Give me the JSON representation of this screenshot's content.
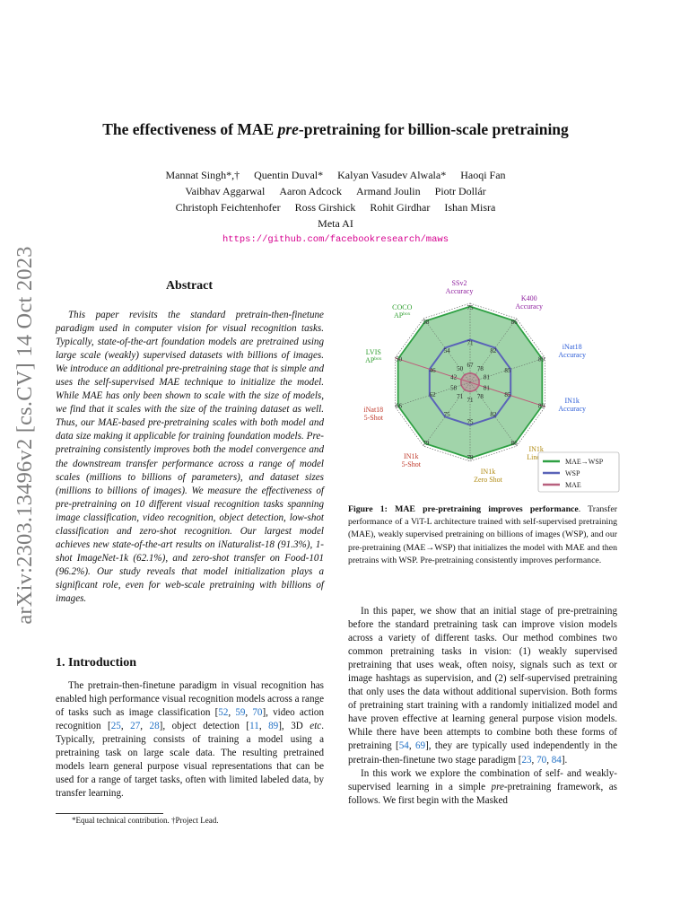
{
  "stamp": "arXiv:2303.13496v2  [cs.CV]  14 Oct 2023",
  "title": {
    "pre": "The effectiveness of MAE ",
    "em": "pre",
    "post": "-pretraining for billion-scale pretraining"
  },
  "authors": {
    "line1": [
      "Mannat Singh*,†",
      "Quentin Duval*",
      "Kalyan Vasudev Alwala*",
      "Haoqi Fan"
    ],
    "line2": [
      "Vaibhav Aggarwal",
      "Aaron Adcock",
      "Armand Joulin",
      "Piotr Dollár"
    ],
    "line3": [
      "Christoph Feichtenhofer",
      "Ross Girshick",
      "Rohit Girdhar",
      "Ishan Misra"
    ],
    "affiliation": "Meta AI",
    "url": "https://github.com/facebookresearch/maws"
  },
  "abstract": {
    "heading": "Abstract",
    "text": "This paper revisits the standard pretrain-then-finetune paradigm used in computer vision for visual recognition tasks. Typically, state-of-the-art foundation models are pretrained using large scale (weakly) supervised datasets with billions of images. We introduce an additional pre-pretraining stage that is simple and uses the self-supervised MAE technique to initialize the model. While MAE has only been shown to scale with the size of models, we find that it scales with the size of the training dataset as well. Thus, our MAE-based pre-pretraining scales with both model and data size making it applicable for training foundation models. Pre-pretraining consistently improves both the model convergence and the downstream transfer performance across a range of model scales (millions to billions of parameters), and dataset sizes (millions to billions of images). We measure the effectiveness of pre-pretraining on 10 different visual recognition tasks spanning image classification, video recognition, object detection, low-shot classification and zero-shot recognition. Our largest model achieves new state-of-the-art results on iNaturalist-18 (91.3%), 1-shot ImageNet-1k (62.1%), and zero-shot transfer on Food-101 (96.2%). Our study reveals that model initialization plays a significant role, even for web-scale pretraining with billions of images."
  },
  "intro": {
    "heading": "1. Introduction",
    "s1": "The pretrain-then-finetune paradigm in visual recognition has enabled high performance visual recognition models across a range of tasks such as image classification [",
    "c1": "52",
    "s2": ", ",
    "c2": "59",
    "s3": ", ",
    "c3": "70",
    "s4": "], video action recognition [",
    "c4": "25",
    "s5": ", ",
    "c5": "27",
    "s6": ", ",
    "c6": "28",
    "s7": "], object detection [",
    "c7": "11",
    "s8": ", ",
    "c8": "89",
    "s9": "], 3D ",
    "etc": "etc",
    "s10": ". Typically, pretraining consists of training a model using a pretraining task on large scale data. The resulting pretrained models learn general purpose visual representations that can be used for a range of target tasks, often with limited labeled data, by transfer learning."
  },
  "footnote": "*Equal technical contribution. †Project Lead.",
  "figure": {
    "caption_bold": "Figure 1: MAE pre-pretraining improves performance",
    "caption_rest": ". Transfer performance of a ViT-L architecture trained with self-supervised pretraining (MAE), weakly supervised pretraining on billions of images (WSP), and our pre-pretraining (MAE→WSP) that initializes the model with MAE and then pretrains with WSP. Pre-pretraining consistently improves performance."
  },
  "right": {
    "p1": "In this paper, we show that an initial stage of pre-pretraining before the standard pretraining task can improve vision models across a variety of different tasks. Our method combines two common pretraining tasks in vision: (1) weakly supervised pretraining that uses weak, often noisy, signals such as text or image hashtags as supervision, and (2) self-supervised pretraining that only uses the data without additional supervision. Both forms of pretraining start training with a randomly initialized model and have proven effective at learning general purpose vision models. While there have been attempts to combine both these forms of pretraining [",
    "c1": "54",
    "p1b": ", ",
    "c2": "69",
    "p1c": "], they are typically used independently in the pretrain-then-finetune two stage paradigm [",
    "c3": "23",
    "p1d": ", ",
    "c4": "70",
    "p1e": ", ",
    "c5": "84",
    "p1f": "].",
    "p2a": "In this work we explore the combination of self- and weakly-supervised learning in a simple ",
    "p2em": "pre",
    "p2b": "-pretraining framework, as follows. We first begin with the Masked"
  },
  "chart_data": {
    "type": "radar",
    "axes": [
      {
        "label": [
          "SSv2",
          "Accuracy"
        ],
        "color": "#8e1f9e"
      },
      {
        "label": [
          "K400",
          "Accuracy"
        ],
        "color": "#8e1f9e"
      },
      {
        "label": [
          "iNat18",
          "Accuracy"
        ],
        "color": "#2a5bd7"
      },
      {
        "label": [
          "IN1k",
          "Accuracy"
        ],
        "color": "#2a5bd7"
      },
      {
        "label": [
          "IN1k",
          "Linear"
        ],
        "color": "#b08a12"
      },
      {
        "label": [
          "IN1k",
          "Zero Shot"
        ],
        "color": "#b08a12"
      },
      {
        "label": [
          "IN1k",
          "5-Shot"
        ],
        "color": "#c0392b"
      },
      {
        "label": [
          "iNat18",
          "5-Shot"
        ],
        "color": "#c0392b"
      },
      {
        "label": [
          "LVIS",
          "AP"
        ],
        "sup": "box",
        "color": "#2f9e2f"
      },
      {
        "label": [
          "COCO",
          "AP"
        ],
        "sup": "box",
        "color": "#2f9e2f"
      }
    ],
    "series": [
      {
        "name": "MAE→WSP",
        "color": "#2ea043",
        "fill": "#2ea043",
        "values": [
          75,
          86,
          89,
          89,
          86,
          79,
          79,
          66,
          50,
          58
        ]
      },
      {
        "name": "WSP",
        "color": "#5a63b8",
        "fill": "none",
        "values": [
          71,
          82,
          85,
          85,
          82,
          75,
          75,
          62,
          46,
          54
        ]
      },
      {
        "name": "MAE",
        "color": "#b8607e",
        "fill": "#c77c95",
        "values": [
          67,
          78,
          81,
          81,
          78,
          71,
          71,
          58,
          42,
          50
        ]
      }
    ],
    "outer_labels": [
      "75",
      "86",
      "89",
      "89",
      "86",
      "79",
      "79",
      "66",
      "50",
      "58"
    ],
    "mid_labels": [
      "71",
      "82",
      "85",
      "85",
      "82",
      "75",
      "75",
      "62",
      "46",
      "54"
    ],
    "inner_labels": [
      "67",
      "78",
      "81",
      "81",
      "78",
      "71",
      "71",
      "58",
      "42",
      "50"
    ],
    "legend_position": "bottom-right"
  }
}
